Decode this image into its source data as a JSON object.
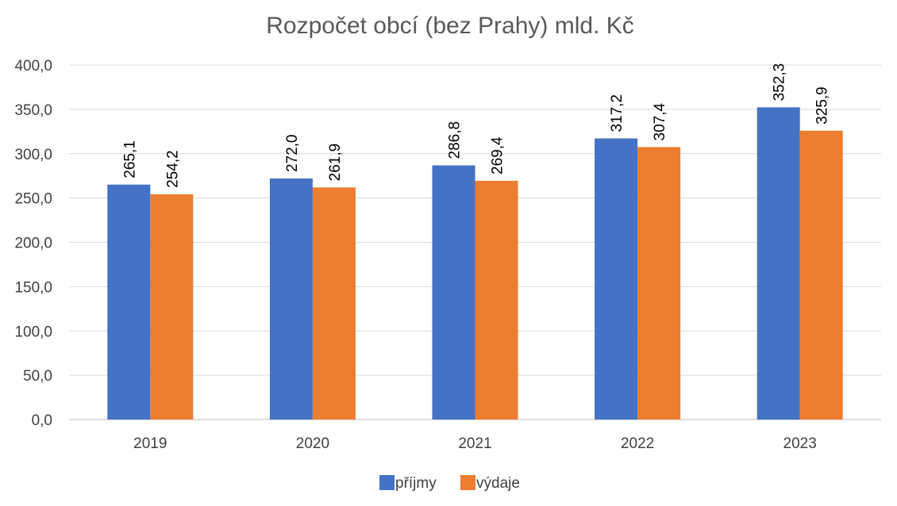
{
  "chart_data": {
    "type": "bar",
    "title": "Rozpočet obcí (bez Prahy) mld. Kč",
    "categories": [
      "2019",
      "2020",
      "2021",
      "2022",
      "2023"
    ],
    "series": [
      {
        "name": "příjmy",
        "color": "#4472c4",
        "values": [
          265.1,
          272.0,
          286.8,
          317.2,
          352.3
        ],
        "labels": [
          "265,1",
          "272,0",
          "286,8",
          "317,2",
          "352,3"
        ]
      },
      {
        "name": "výdaje",
        "color": "#ed7d31",
        "values": [
          254.2,
          261.9,
          269.4,
          307.4,
          325.9
        ],
        "labels": [
          "254,2",
          "261,9",
          "269,4",
          "307,4",
          "325,9"
        ]
      }
    ],
    "ylim": [
      0,
      400
    ],
    "yticks": [
      0,
      50,
      100,
      150,
      200,
      250,
      300,
      350,
      400
    ],
    "ytick_labels": [
      "0,0",
      "50,0",
      "100,0",
      "150,0",
      "200,0",
      "250,0",
      "300,0",
      "350,0",
      "400,0"
    ],
    "grid": true,
    "legend_position": "bottom"
  }
}
